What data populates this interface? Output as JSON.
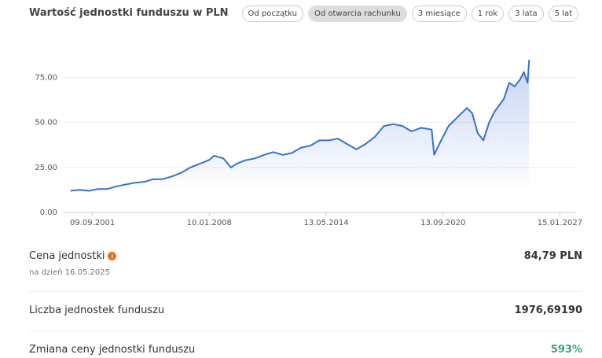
{
  "title": "Wartość jednostki funduszu w PLN",
  "buttons": [
    "Od początku",
    "Od otwarcia rachunku",
    "3 miesiące",
    "1 rok",
    "3 lata",
    "5 lat"
  ],
  "chart_data": {
    "type": "area",
    "color": "#3a6fcf",
    "grid": true,
    "x": [
      "01.07.2000",
      "01.01.2001",
      "01.07.2001",
      "01.01.2002",
      "01.07.2002",
      "01.01.2003",
      "01.07.2003",
      "01.01.2004",
      "01.07.2004",
      "01.01.2005",
      "01.07.2005",
      "01.01.2006",
      "01.07.2006",
      "01.01.2007",
      "01.07.2007",
      "01.01.2008",
      "15.04.2008",
      "15.10.2008",
      "15.03.2009",
      "01.07.2009",
      "01.01.2010",
      "01.07.2010",
      "01.01.2011",
      "01.07.2011",
      "01.01.2012",
      "01.07.2012",
      "01.01.2013",
      "01.07.2013",
      "01.01.2014",
      "01.07.2014",
      "01.01.2015",
      "01.07.2015",
      "01.01.2016",
      "01.07.2016",
      "01.01.2017",
      "01.07.2017",
      "01.01.2018",
      "01.07.2018",
      "01.01.2019",
      "01.07.2019",
      "01.02.2020",
      "20.03.2020",
      "01.07.2020",
      "01.01.2021",
      "01.07.2021",
      "01.01.2022",
      "15.04.2022",
      "01.08.2022",
      "20.11.2022",
      "15.03.2023",
      "01.07.2023",
      "01.01.2024",
      "15.04.2024",
      "01.08.2024",
      "20.11.2024",
      "01.02.2025",
      "15.04.2025",
      "16.05.2025"
    ],
    "values": [
      12,
      12.5,
      12,
      13,
      13,
      14.5,
      15.5,
      16.5,
      17,
      18.5,
      18.5,
      20,
      22,
      25,
      27,
      29,
      31.5,
      30,
      25,
      27,
      29,
      30,
      32,
      33.5,
      32,
      33,
      36,
      37,
      40,
      40,
      41,
      38,
      35,
      38,
      42,
      48,
      49,
      48,
      45,
      47,
      46,
      32,
      38,
      48,
      53,
      58,
      55,
      44,
      40,
      50,
      56,
      63,
      72,
      70,
      74,
      78,
      72,
      84.79
    ],
    "xlim": [
      "01.02.2000",
      "01.12.2027"
    ],
    "xticks": [
      "09.09.2001",
      "10.01.2008",
      "13.05.2014",
      "13.09.2020",
      "15.01.2027"
    ],
    "ylim": [
      0,
      90
    ],
    "yticks": [
      {
        "value": 0,
        "label": "0.00"
      },
      {
        "value": 25,
        "label": "25.00"
      },
      {
        "value": 50,
        "label": "50.00"
      },
      {
        "value": 75,
        "label": "75.00"
      }
    ]
  },
  "details": [
    {
      "label": "Cena jednostki",
      "value": "84,79 PLN",
      "note": "na dzień 16.05.2025"
    },
    {
      "label": "Liczba jednostek funduszu",
      "value": "1976,69190"
    },
    {
      "label": "Zmiana ceny jednostki funduszu",
      "value": "593%"
    }
  ]
}
